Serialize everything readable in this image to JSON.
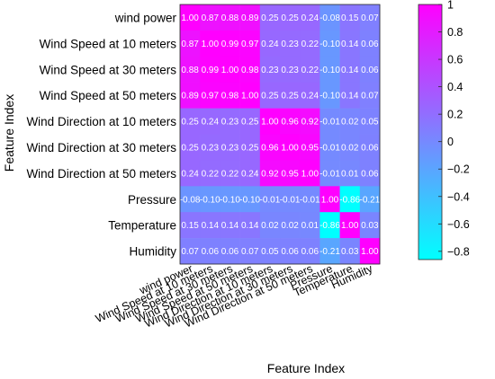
{
  "chart_data": {
    "type": "heatmap",
    "xlabel": "Feature Index",
    "ylabel": "Feature Index",
    "labels": [
      "wind power",
      "Wind Speed at 10 meters",
      "Wind Speed at 30 meters",
      "Wind Speed at 50 meters",
      "Wind Direction at 10 meters",
      "Wind Direction at 30 meters",
      "Wind Direction at 50 meters",
      "Pressure",
      "Temperature",
      "Humidity"
    ],
    "values": [
      [
        1.0,
        0.87,
        0.88,
        0.89,
        0.25,
        0.25,
        0.24,
        -0.08,
        0.15,
        0.07
      ],
      [
        0.87,
        1.0,
        0.99,
        0.97,
        0.24,
        0.23,
        0.22,
        -0.1,
        0.14,
        0.06
      ],
      [
        0.88,
        0.99,
        1.0,
        0.98,
        0.23,
        0.23,
        0.22,
        -0.1,
        0.14,
        0.06
      ],
      [
        0.89,
        0.97,
        0.98,
        1.0,
        0.25,
        0.25,
        0.24,
        -0.1,
        0.14,
        0.07
      ],
      [
        0.25,
        0.24,
        0.23,
        0.25,
        1.0,
        0.96,
        0.92,
        -0.01,
        0.02,
        0.05
      ],
      [
        0.25,
        0.23,
        0.23,
        0.25,
        0.96,
        1.0,
        0.95,
        -0.01,
        0.02,
        0.06
      ],
      [
        0.24,
        0.22,
        0.22,
        0.24,
        0.92,
        0.95,
        1.0,
        -0.01,
        0.01,
        0.06
      ],
      [
        -0.08,
        -0.1,
        -0.1,
        -0.1,
        -0.01,
        -0.01,
        -0.01,
        1.0,
        -0.86,
        -0.21
      ],
      [
        0.15,
        0.14,
        0.14,
        0.14,
        0.02,
        0.02,
        0.01,
        -0.86,
        1.0,
        0.03
      ],
      [
        0.07,
        0.06,
        0.06,
        0.07,
        0.05,
        0.06,
        0.06,
        -0.21,
        0.03,
        1.0
      ]
    ],
    "cell_labels": [
      [
        "1.00",
        "0.87",
        "0.88",
        "0.89",
        "0.25",
        "0.25",
        "0.24",
        "-0.08",
        "0.15",
        "0.07"
      ],
      [
        "0.87",
        "1.00",
        "0.99",
        "0.97",
        "0.24",
        "0.23",
        "0.22",
        "-0.10",
        "0.14",
        "0.06"
      ],
      [
        "0.88",
        "0.99",
        "1.00",
        "0.98",
        "0.23",
        "0.23",
        "0.22",
        "-0.10",
        "0.14",
        "0.06"
      ],
      [
        "0.89",
        "0.97",
        "0.98",
        "1.00",
        "0.25",
        "0.25",
        "0.24",
        "-0.10",
        "0.14",
        "0.07"
      ],
      [
        "0.25",
        "0.24",
        "0.23",
        "0.25",
        "1.00",
        "0.96",
        "0.92",
        "-0.01",
        "0.02",
        "0.05"
      ],
      [
        "0.25",
        "0.23",
        "0.23",
        "0.25",
        "0.96",
        "1.00",
        "0.95",
        "-0.01",
        "0.02",
        "0.06"
      ],
      [
        "0.24",
        "0.22",
        "0.22",
        "0.24",
        "0.92",
        "0.95",
        "1.00",
        "-0.01",
        "0.01",
        "0.06"
      ],
      [
        "-0.08",
        "-0.10",
        "-0.10",
        "-0.10",
        "-0.01",
        "-0.01",
        "-0.01",
        "1.00",
        "-0.86",
        "-0.21"
      ],
      [
        "0.15",
        "0.14",
        "0.14",
        "0.14",
        "0.02",
        "0.02",
        "0.01",
        "-0.86",
        "1.00",
        "0.03"
      ],
      [
        "0.07",
        "0.06",
        "0.06",
        "0.07",
        "0.05",
        "0.06",
        "0.06",
        "-0.21",
        "0.03",
        "1.00"
      ]
    ],
    "colorbar": {
      "ticks": [
        1,
        0.8,
        0.6,
        0.4,
        0.2,
        0,
        -0.2,
        -0.4,
        -0.6,
        -0.8
      ],
      "tick_labels": [
        "1",
        "0.8",
        "0.6",
        "0.4",
        "0.2",
        "0",
        "−0.2",
        "−0.4",
        "−0.6",
        "−0.8"
      ],
      "range": [
        -0.86,
        1.0
      ]
    },
    "colormap": {
      "low": "#00ffff",
      "high": "#ff00ff"
    }
  }
}
